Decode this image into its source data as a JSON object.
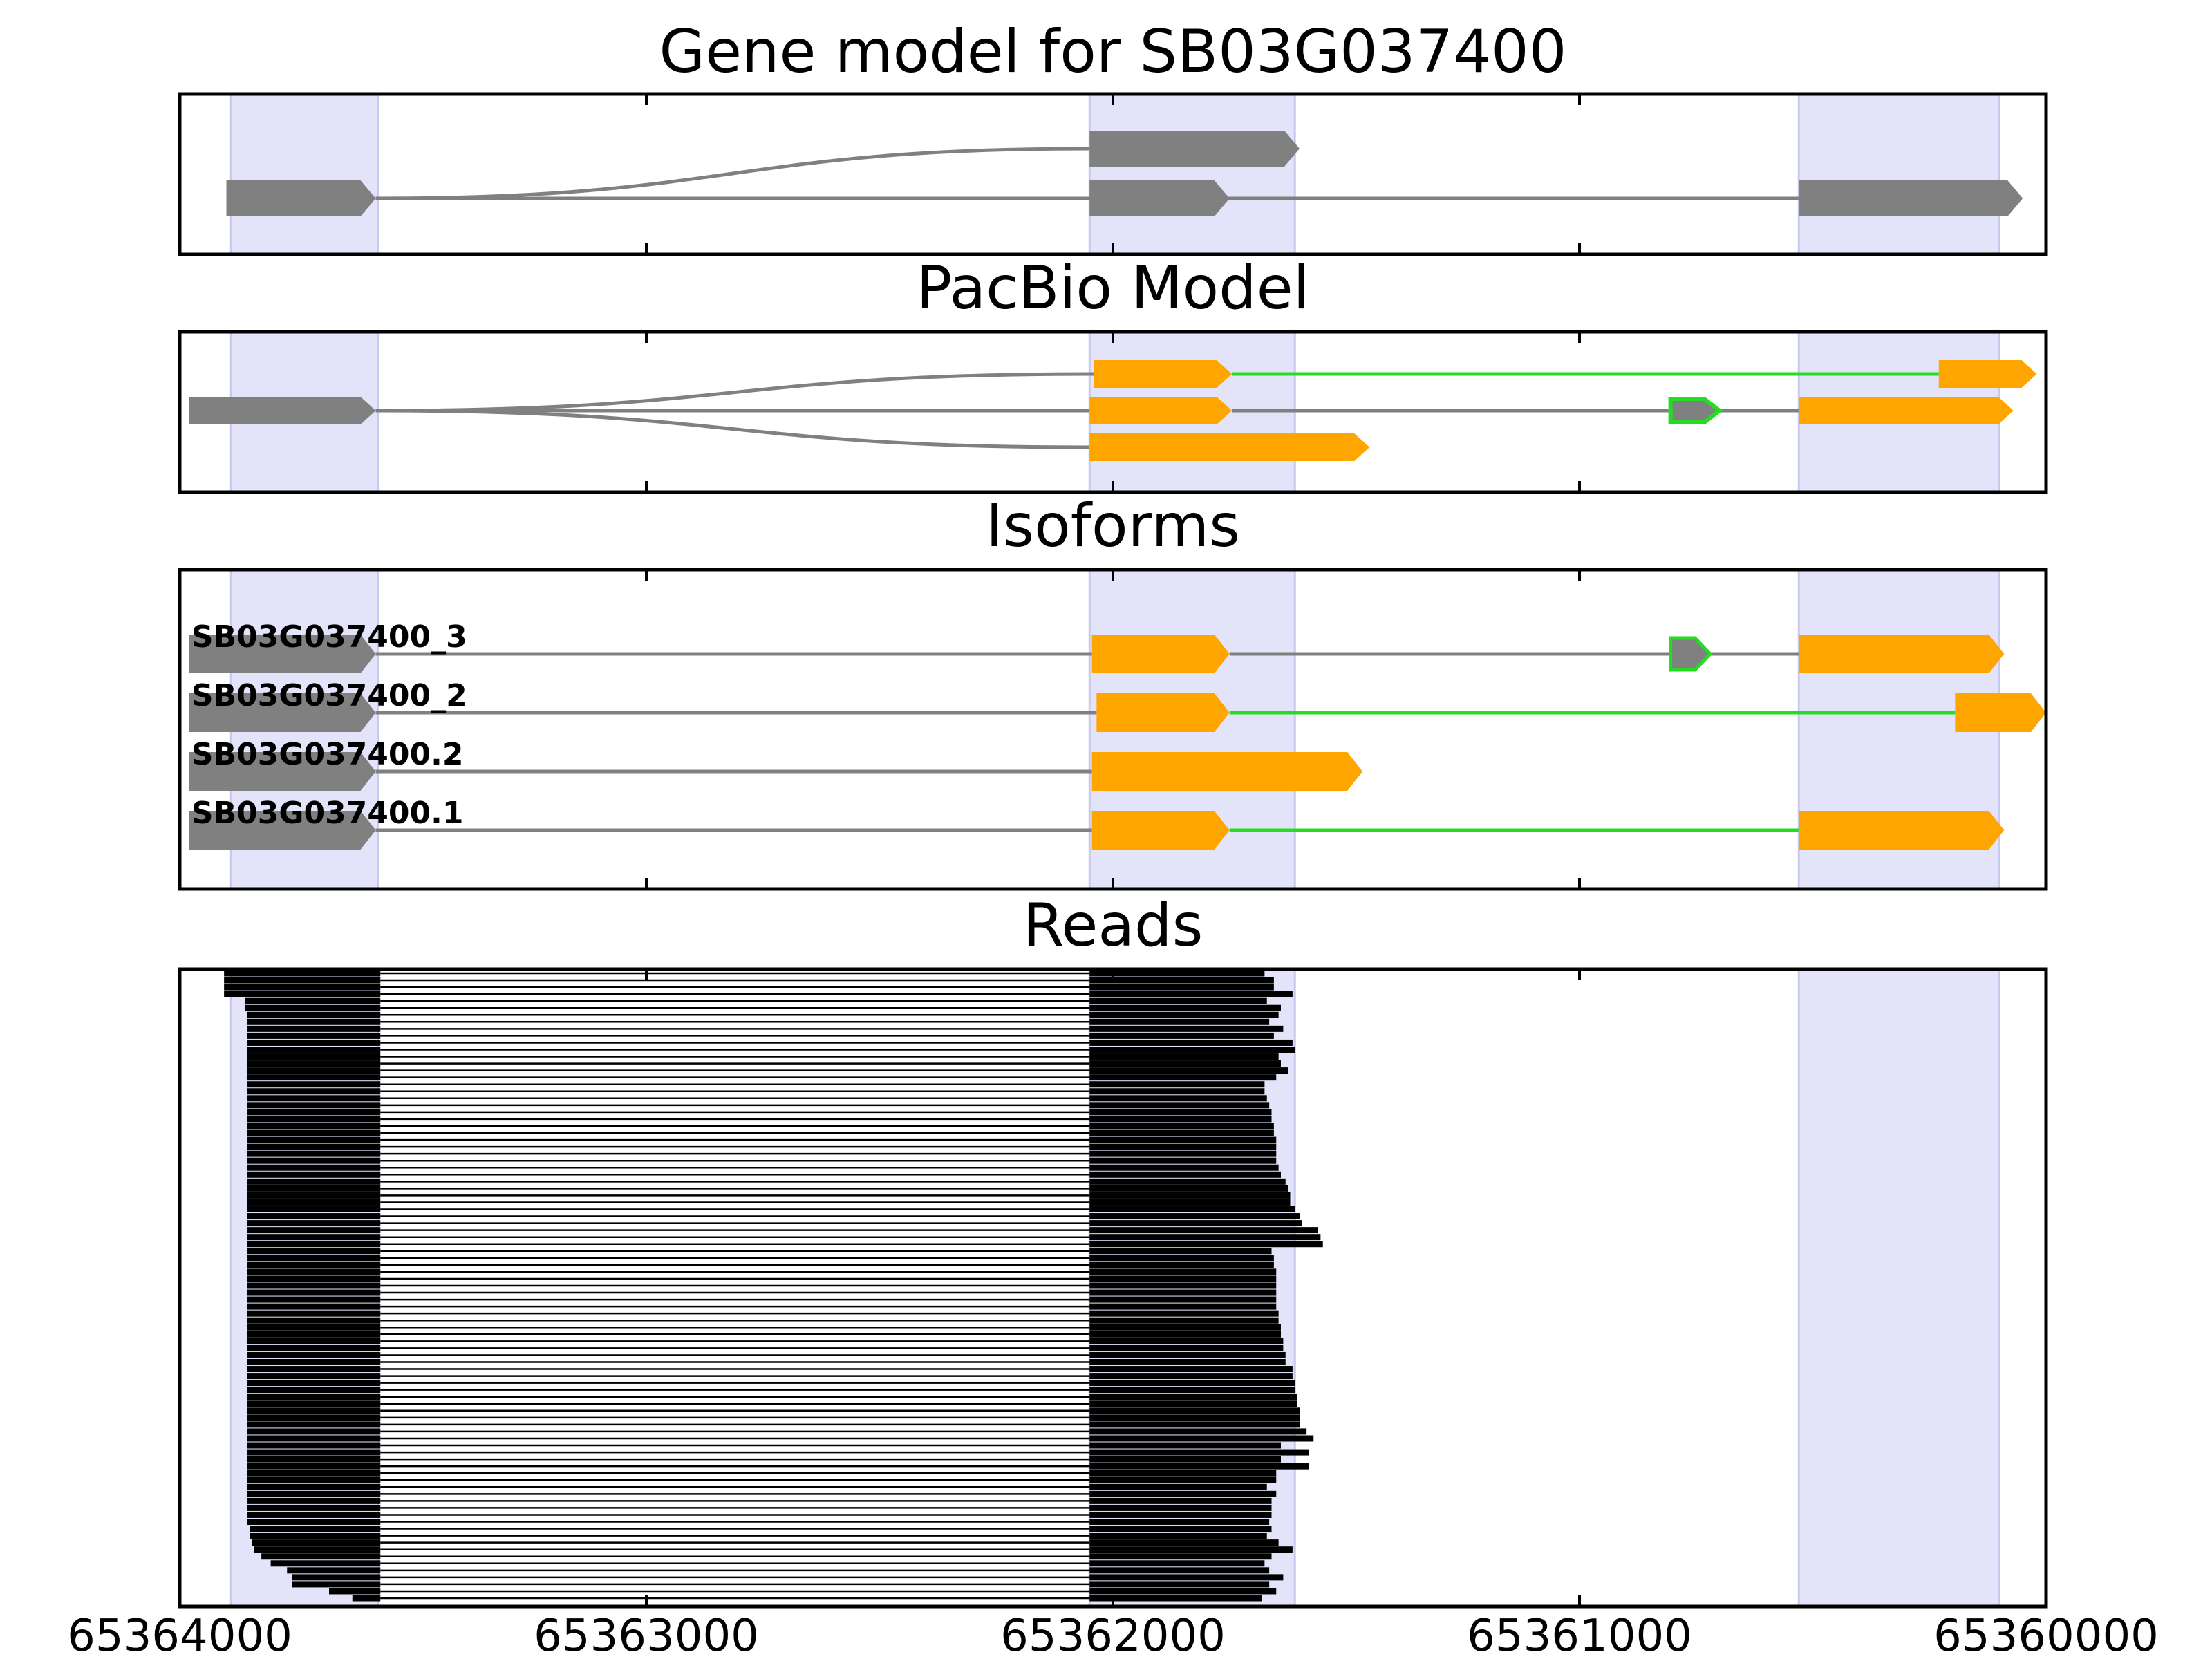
{
  "chart_data": {
    "type": "gene-track",
    "xlim": [
      65364000,
      65360000
    ],
    "xticks": [
      65364000,
      65363000,
      65362000,
      65361000,
      65360000
    ],
    "xtick_labels": [
      "65364000",
      "65363000",
      "65362000",
      "65361000",
      "65360000"
    ],
    "highlight_regions": [
      [
        65363890,
        65363575
      ],
      [
        65362050,
        65361610
      ],
      [
        65360530,
        65360100
      ]
    ],
    "colors": {
      "gene_exon": "#808080",
      "pacbio_exon": "#ffa500",
      "intron": "#808080",
      "novel_junction": "#22dd22",
      "highlight": "#e3e3fa",
      "read": "#000000"
    },
    "panels": [
      {
        "title": "Gene model for SB03G037400",
        "transcripts": [
          {
            "exons": [
              [
                65363900,
                65363580
              ],
              [
                65362050,
                65361750
              ],
              [
                65360530,
                65360050
              ]
            ]
          },
          {
            "exons": [
              [
                65363580,
                65363580
              ],
              [
                65362050,
                65361600
              ]
            ],
            "curved_intron": true
          }
        ]
      },
      {
        "title": "PacBio Model",
        "transcripts": [
          {
            "exons": [
              [
                65363980,
                65363580
              ],
              [
                65362040,
                65361745
              ],
              [
                65360230,
                65360020
              ]
            ],
            "junction": [
              "gray",
              "green"
            ],
            "curved_first": true
          },
          {
            "exons": [
              [
                65363580,
                65363580
              ],
              [
                65362050,
                65361745
              ],
              [
                65360805,
                65360700
              ],
              [
                65360530,
                65360070
              ]
            ],
            "junction": [
              "gray",
              "gray",
              "gray"
            ],
            "special_exon": 2
          },
          {
            "exons": [
              [
                65363580,
                65363580
              ],
              [
                65362050,
                65361450
              ]
            ],
            "junction": [
              "gray"
            ],
            "curved_first": true
          }
        ]
      },
      {
        "title": "Isoforms",
        "isoforms": [
          {
            "name": "SB03G037400_3",
            "exons": [
              [
                65363980,
                65363580
              ],
              [
                65362045,
                65361750
              ],
              [
                65360805,
                65360720
              ],
              [
                65360530,
                65360090
              ]
            ],
            "junction": [
              "gray",
              "gray",
              "gray"
            ],
            "special_exon": 2
          },
          {
            "name": "SB03G037400_2",
            "exons": [
              [
                65363980,
                65363580
              ],
              [
                65362035,
                65361750
              ],
              [
                65360195,
                65360000
              ]
            ],
            "junction": [
              "gray",
              "green"
            ]
          },
          {
            "name": "SB03G037400.2",
            "exons": [
              [
                65363980,
                65363580
              ],
              [
                65362045,
                65361465
              ]
            ],
            "junction": [
              "gray"
            ]
          },
          {
            "name": "SB03G037400.1",
            "exons": [
              [
                65363980,
                65363580
              ],
              [
                65362045,
                65361750
              ],
              [
                65360530,
                65360090
              ]
            ],
            "junction": [
              "gray",
              "green"
            ]
          }
        ]
      },
      {
        "title": "Reads",
        "reads": {
          "junction_start": 65363570,
          "junction_end": 65362050,
          "starts": [
            65363905,
            65363905,
            65363905,
            65363905,
            65363860,
            65363860,
            65363855,
            65363855,
            65363855,
            65363855,
            65363855,
            65363855,
            65363855,
            65363855,
            65363855,
            65363855,
            65363855,
            65363855,
            65363855,
            65363855,
            65363855,
            65363855,
            65363855,
            65363855,
            65363855,
            65363855,
            65363855,
            65363855,
            65363855,
            65363855,
            65363855,
            65363855,
            65363855,
            65363855,
            65363855,
            65363855,
            65363855,
            65363855,
            65363855,
            65363855,
            65363855,
            65363855,
            65363855,
            65363855,
            65363855,
            65363855,
            65363855,
            65363855,
            65363855,
            65363855,
            65363855,
            65363855,
            65363855,
            65363855,
            65363855,
            65363855,
            65363855,
            65363855,
            65363855,
            65363855,
            65363855,
            65363855,
            65363855,
            65363855,
            65363855,
            65363855,
            65363855,
            65363855,
            65363855,
            65363855,
            65363855,
            65363855,
            65363855,
            65363855,
            65363855,
            65363855,
            65363855,
            65363855,
            65363855,
            65363855,
            65363850,
            65363850,
            65363845,
            65363840,
            65363825,
            65363805,
            65363770,
            65363760,
            65363760,
            65363680,
            65363630
          ],
          "ends": [
            65361675,
            65361655,
            65361655,
            65361615,
            65361670,
            65361640,
            65361645,
            65361665,
            65361635,
            65361655,
            65361615,
            65361610,
            65361645,
            65361640,
            65361625,
            65361650,
            65361675,
            65361675,
            65361670,
            65361665,
            65361660,
            65361660,
            65361655,
            65361655,
            65361650,
            65361650,
            65361650,
            65361650,
            65361645,
            65361640,
            65361630,
            65361625,
            65361620,
            65361620,
            65361610,
            65361600,
            65361595,
            65361560,
            65361555,
            65361550,
            65361660,
            65361655,
            65361655,
            65361650,
            65361650,
            65361650,
            65361650,
            65361650,
            65361650,
            65361645,
            65361645,
            65361640,
            65361640,
            65361635,
            65361635,
            65361630,
            65361630,
            65361615,
            65361615,
            65361610,
            65361610,
            65361605,
            65361605,
            65361600,
            65361600,
            65361600,
            65361585,
            65361570,
            65361640,
            65361580,
            65361640,
            65361580,
            65361650,
            65361650,
            65361670,
            65361650,
            65361660,
            65361660,
            65361660,
            65361665,
            65361660,
            65361670,
            65361645,
            65361615,
            65361660,
            65361675,
            65361665,
            65361635,
            65361665,
            65361650,
            65361680
          ]
        }
      }
    ]
  }
}
